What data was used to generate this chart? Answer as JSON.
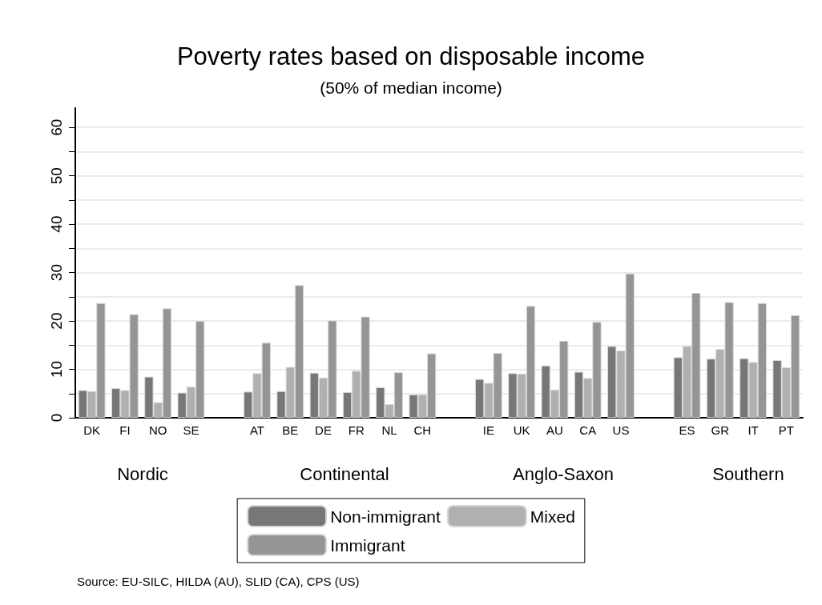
{
  "chart_data": {
    "type": "bar",
    "title": "Poverty rates based on disposable income",
    "subtitle": "(50% of median income)",
    "categories": [
      "DK",
      "FI",
      "NO",
      "SE",
      null,
      "AT",
      "BE",
      "DE",
      "FR",
      "NL",
      "CH",
      null,
      "IE",
      "UK",
      "AU",
      "CA",
      "US",
      null,
      "ES",
      "GR",
      "IT",
      "PT"
    ],
    "series": [
      {
        "name": "Non-immigrant",
        "color": "#777777",
        "values": [
          5.7,
          6.1,
          8.5,
          5.2,
          null,
          5.4,
          5.5,
          9.3,
          5.3,
          6.3,
          4.8,
          null,
          8.0,
          9.2,
          10.8,
          9.5,
          14.8,
          null,
          12.5,
          12.2,
          12.3,
          11.9
        ]
      },
      {
        "name": "Mixed",
        "color": "#b0b0b0",
        "values": [
          5.5,
          5.7,
          3.2,
          6.4,
          null,
          9.2,
          10.5,
          8.3,
          9.7,
          2.8,
          4.8,
          null,
          7.2,
          9.1,
          5.8,
          8.2,
          13.9,
          null,
          14.8,
          14.2,
          11.5,
          10.4
        ]
      },
      {
        "name": "Immigrant",
        "color": "#959595",
        "values": [
          23.7,
          21.4,
          22.6,
          20.0,
          null,
          15.5,
          27.4,
          20.1,
          20.9,
          9.4,
          13.3,
          null,
          13.4,
          23.1,
          15.9,
          19.8,
          29.8,
          null,
          25.8,
          23.9,
          23.7,
          21.2
        ]
      }
    ],
    "ylim": [
      0,
      64
    ],
    "yticks": [
      0,
      {
        "value": 5,
        "label": null
      },
      10,
      {
        "value": 15,
        "label": null
      },
      20,
      {
        "value": 25,
        "label": null
      },
      30,
      {
        "value": 35,
        "label": null
      },
      40,
      {
        "value": 45,
        "label": null
      },
      50,
      {
        "value": 55,
        "label": null
      },
      60
    ],
    "grid": "y",
    "legend": "bottom",
    "annotations": [
      "Nordic",
      "Continental",
      "Anglo-Saxon",
      "Southern",
      "Source: EU-SILC, HILDA (AU), SLID (CA), CPS (US)"
    ]
  }
}
